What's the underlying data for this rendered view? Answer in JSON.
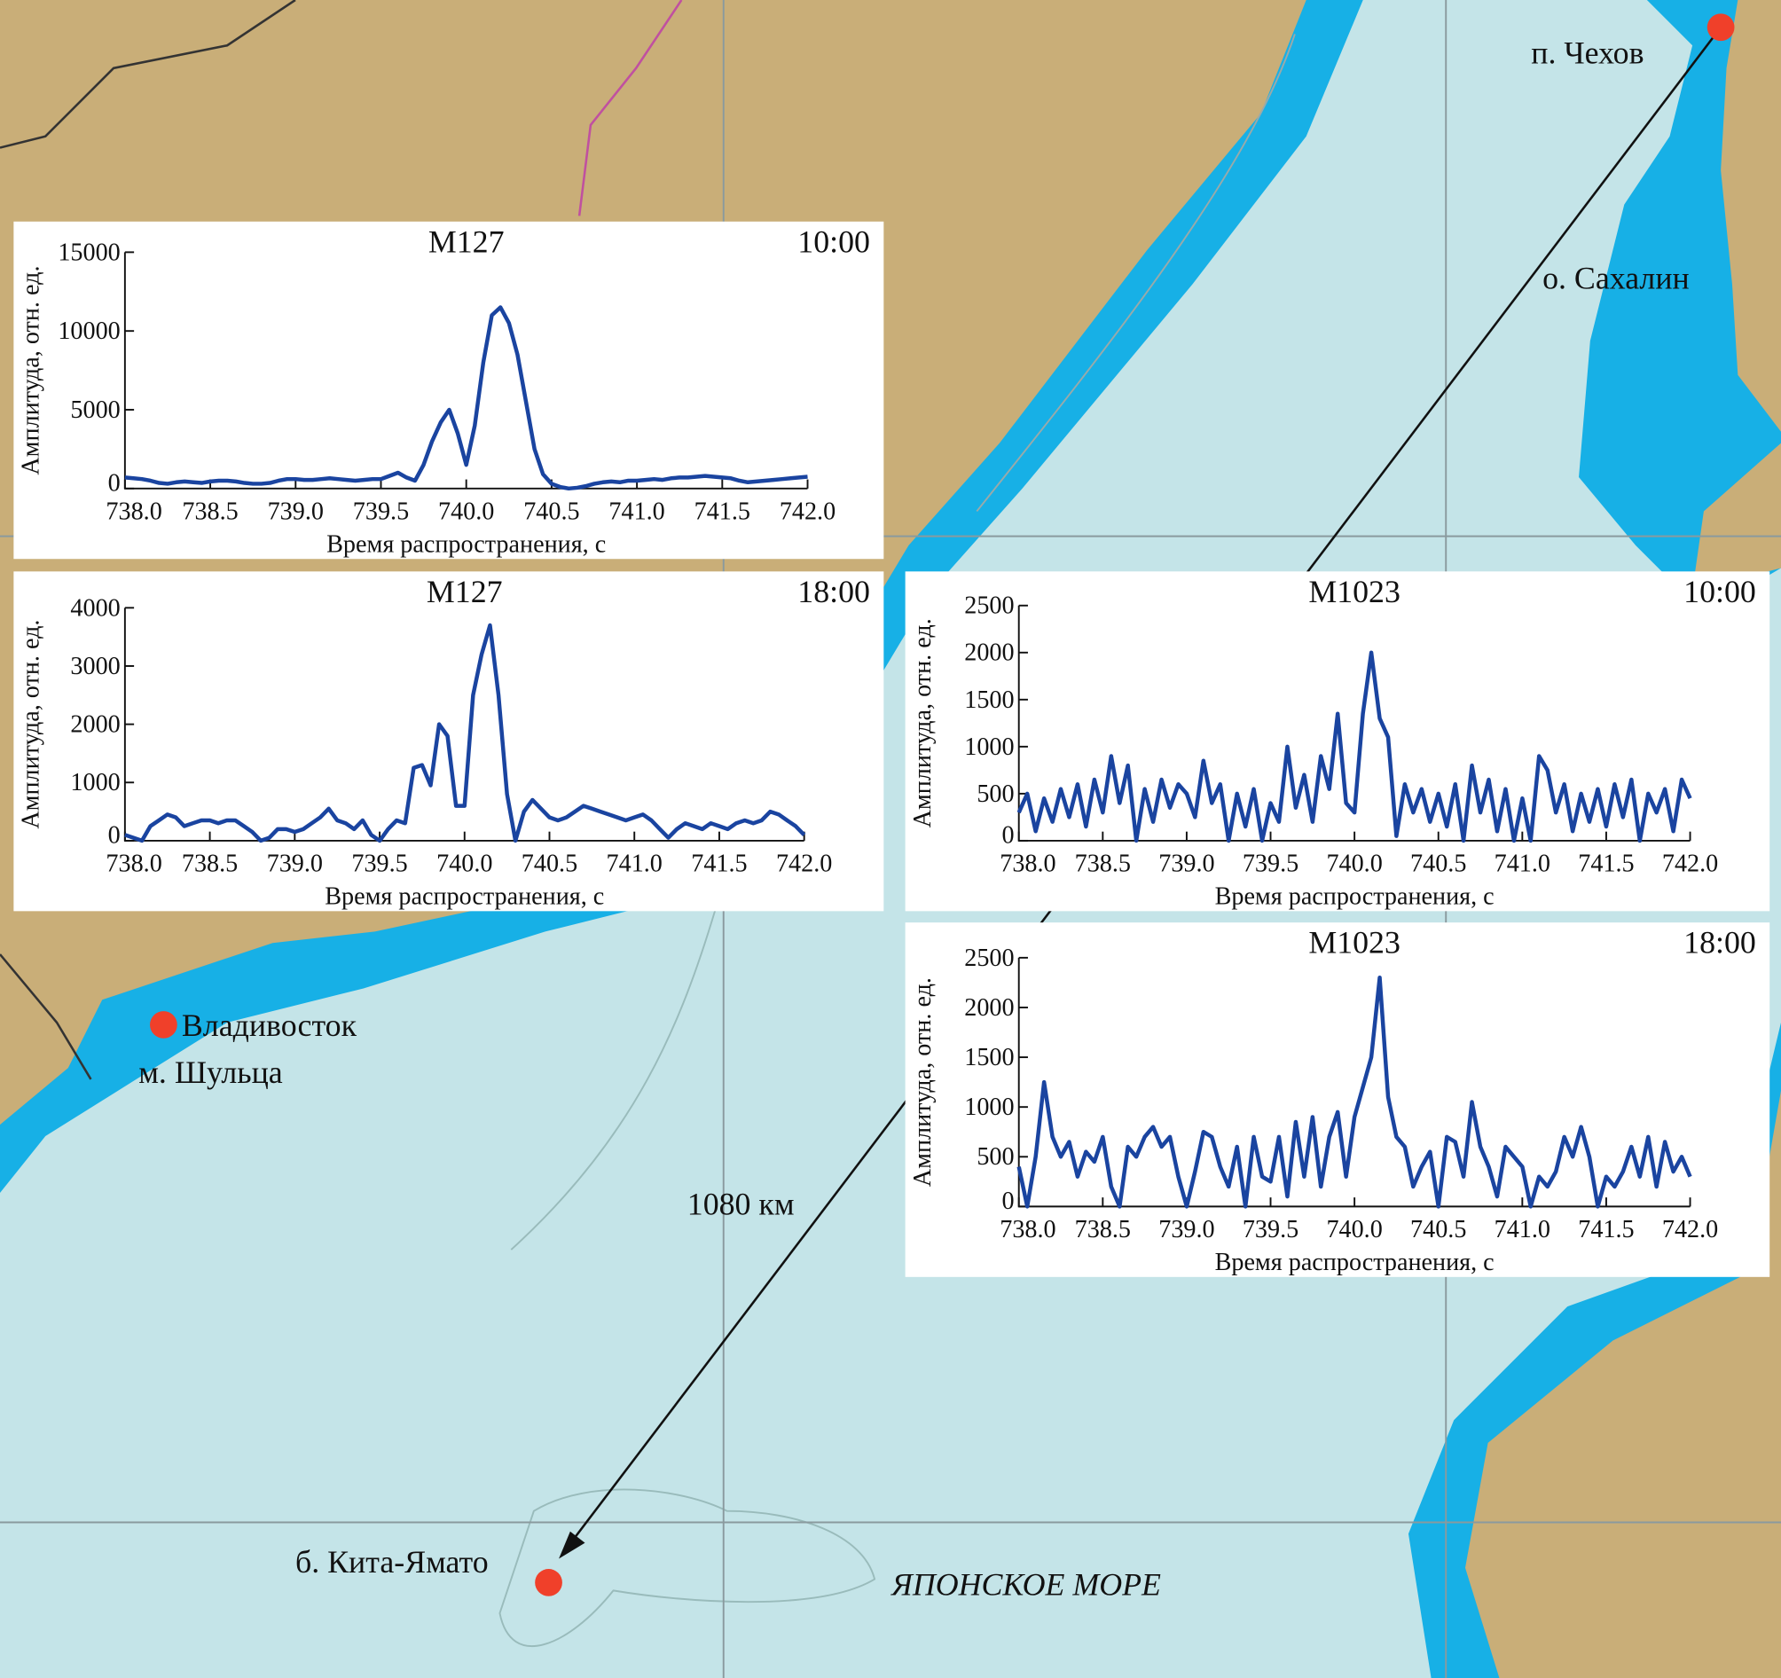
{
  "map": {
    "colors": {
      "land": "#c9ae78",
      "deep_water": "#17b0e6",
      "shallow_water": "#c4e4e8",
      "station_marker": "#f0402a",
      "chart_line": "#1a44a0"
    },
    "labels": {
      "chekhov": "п. Чехов",
      "sakhalin": "о. Сахалин",
      "vladivostok": "Владивосток",
      "shultsa": "м. Шульца",
      "distance": "1080 км",
      "kita_yamato": "б. Кита-Ямато",
      "sea": "ЯПОНСКОЕ МОРЕ"
    }
  },
  "chart_data": [
    {
      "type": "line",
      "title": "M127",
      "time": "10:00",
      "xlabel": "Время распространения, с",
      "ylabel": "Амплитуда, отн. ед.",
      "xlim": [
        738.0,
        742.0
      ],
      "ylim": [
        0,
        15000
      ],
      "xticks": [
        "738.0",
        "738.5",
        "739.0",
        "739.5",
        "740.0",
        "740.5",
        "741.0",
        "741.5",
        "742.0"
      ],
      "yticks": [
        "0",
        "5000",
        "10000",
        "15000"
      ],
      "x_start": 738.0,
      "x_step": 0.05,
      "values": [
        700,
        650,
        600,
        500,
        350,
        300,
        400,
        450,
        400,
        350,
        450,
        500,
        500,
        450,
        350,
        300,
        300,
        350,
        500,
        600,
        600,
        550,
        550,
        600,
        650,
        600,
        550,
        500,
        550,
        600,
        600,
        800,
        1000,
        700,
        500,
        1500,
        3000,
        4200,
        5000,
        3500,
        1500,
        4000,
        8000,
        11000,
        11500,
        10500,
        8500,
        5500,
        2500,
        900,
        300,
        100,
        0,
        50,
        150,
        300,
        400,
        450,
        400,
        500,
        500,
        550,
        600,
        550,
        650,
        700,
        700,
        750,
        800,
        750,
        700,
        650,
        500,
        400,
        450,
        500,
        550,
        600,
        650,
        700,
        750
      ]
    },
    {
      "type": "line",
      "title": "M127",
      "time": "18:00",
      "xlabel": "Время распространения, с",
      "ylabel": "Амплитуда, отн. ед.",
      "xlim": [
        738.0,
        742.0
      ],
      "ylim": [
        0,
        4000
      ],
      "xticks": [
        "738.0",
        "738.5",
        "739.0",
        "739.5",
        "740.0",
        "740.5",
        "741.0",
        "741.5",
        "742.0"
      ],
      "yticks": [
        "0",
        "1000",
        "2000",
        "3000",
        "4000"
      ],
      "x_start": 738.0,
      "x_step": 0.05,
      "values": [
        100,
        50,
        0,
        250,
        350,
        450,
        400,
        250,
        300,
        350,
        350,
        300,
        350,
        350,
        250,
        150,
        0,
        50,
        200,
        200,
        150,
        200,
        300,
        400,
        550,
        350,
        300,
        200,
        350,
        100,
        0,
        200,
        350,
        300,
        1250,
        1300,
        950,
        2000,
        1800,
        600,
        600,
        2500,
        3200,
        3700,
        2500,
        800,
        0,
        500,
        700,
        550,
        400,
        350,
        400,
        500,
        600,
        550,
        500,
        450,
        400,
        350,
        400,
        450,
        350,
        200,
        50,
        200,
        300,
        250,
        200,
        300,
        250,
        200,
        300,
        350,
        300,
        350,
        500,
        450,
        350,
        250,
        100
      ]
    },
    {
      "type": "line",
      "title": "M1023",
      "time": "10:00",
      "xlabel": "Время распространения, с",
      "ylabel": "Амплитуда, отн. ед.",
      "xlim": [
        738.0,
        742.0
      ],
      "ylim": [
        0,
        2500
      ],
      "xticks": [
        "738.0",
        "738.5",
        "739.0",
        "739.5",
        "740.0",
        "740.5",
        "741.0",
        "741.5",
        "742.0"
      ],
      "yticks": [
        "0",
        "500",
        "1000",
        "1500",
        "2000",
        "2500"
      ],
      "x_start": 738.0,
      "x_step": 0.05,
      "values": [
        300,
        500,
        100,
        450,
        200,
        550,
        250,
        600,
        150,
        650,
        300,
        900,
        400,
        800,
        0,
        550,
        200,
        650,
        350,
        600,
        500,
        250,
        850,
        400,
        600,
        0,
        500,
        150,
        550,
        0,
        400,
        200,
        1000,
        350,
        700,
        200,
        900,
        550,
        1350,
        400,
        300,
        1350,
        2000,
        1300,
        1100,
        50,
        600,
        300,
        550,
        200,
        500,
        150,
        600,
        0,
        800,
        300,
        650,
        100,
        550,
        0,
        450,
        0,
        900,
        750,
        300,
        600,
        100,
        500,
        200,
        550,
        150,
        600,
        250,
        650,
        0,
        500,
        300,
        550,
        100,
        650,
        450
      ]
    },
    {
      "type": "line",
      "title": "M1023",
      "time": "18:00",
      "xlabel": "Время распространения, с",
      "ylabel": "Амплитуда, отн. ед.",
      "xlim": [
        738.0,
        742.0
      ],
      "ylim": [
        0,
        2500
      ],
      "xticks": [
        "738.0",
        "738.5",
        "739.0",
        "739.5",
        "740.0",
        "740.5",
        "741.0",
        "741.5",
        "742.0"
      ],
      "yticks": [
        "0",
        "500",
        "1000",
        "1500",
        "2000",
        "2500"
      ],
      "x_start": 738.0,
      "x_step": 0.05,
      "values": [
        400,
        0,
        500,
        1250,
        700,
        500,
        650,
        300,
        550,
        450,
        700,
        200,
        0,
        600,
        500,
        700,
        800,
        600,
        700,
        300,
        0,
        350,
        750,
        700,
        400,
        200,
        600,
        0,
        700,
        300,
        250,
        700,
        100,
        850,
        300,
        900,
        200,
        700,
        950,
        300,
        900,
        1200,
        1500,
        2300,
        1100,
        700,
        600,
        200,
        400,
        550,
        0,
        700,
        650,
        300,
        1050,
        600,
        400,
        100,
        600,
        500,
        400,
        0,
        300,
        200,
        350,
        700,
        500,
        800,
        500,
        0,
        300,
        200,
        350,
        600,
        300,
        700,
        200,
        650,
        350,
        500,
        300
      ]
    }
  ]
}
